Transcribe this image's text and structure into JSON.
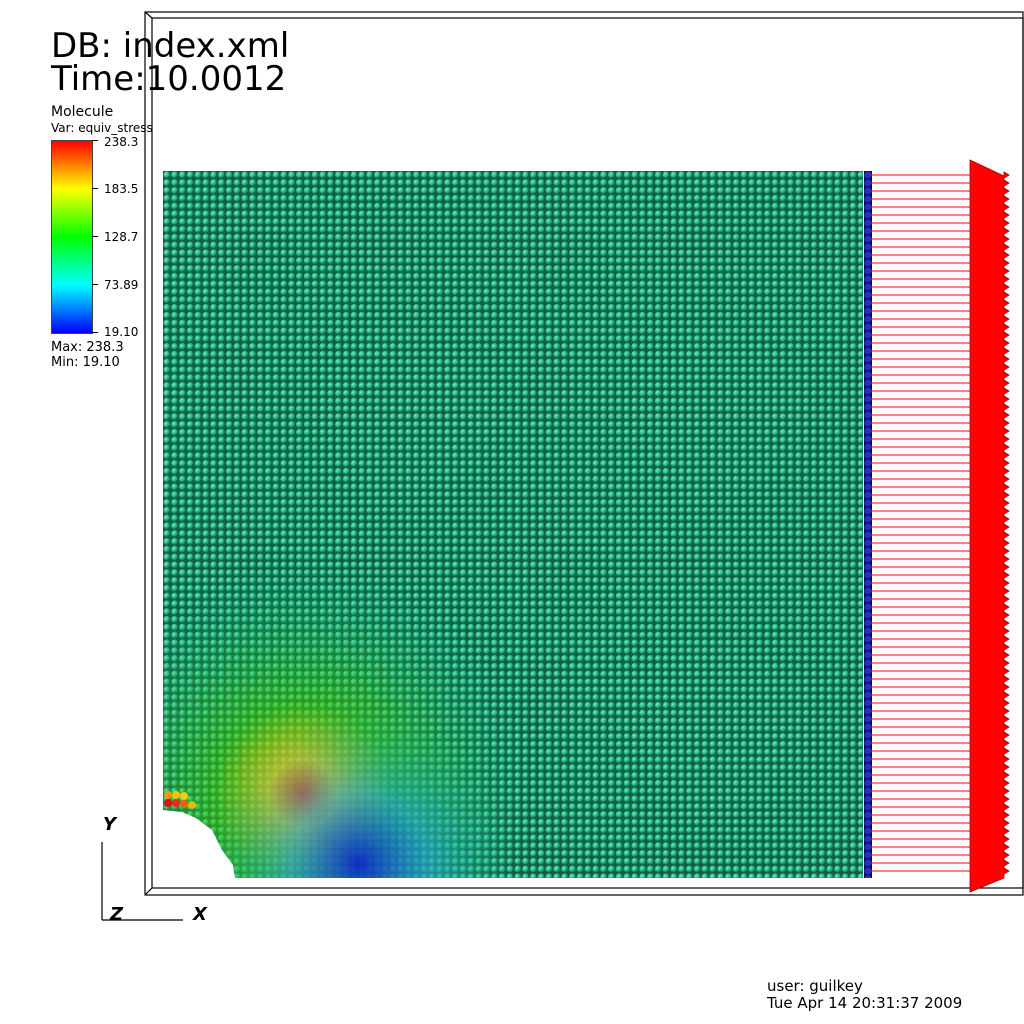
{
  "header": {
    "db": "DB: index.xml",
    "time": "Time:10.0012"
  },
  "legend": {
    "object": "Molecule",
    "variable": "Var: equiv_stress",
    "ticks": [
      "238.3",
      "183.5",
      "128.7",
      "73.89",
      "19.10"
    ],
    "max": "Max:  238.3",
    "min": "Min:  19.10",
    "gradient_colors": [
      "#ff0000",
      "#ffff00",
      "#00ff00",
      "#00ffff",
      "#0000ff"
    ]
  },
  "axes": {
    "y": "Y",
    "z": "Z",
    "x": "X"
  },
  "footer": {
    "user": "user: guilkey",
    "date": "Tue Apr 14 20:31:37 2009"
  },
  "scene": {
    "particle_color": "#1fb585",
    "boundary_column_color": "#1a1aa6",
    "arrow_color": "#ff0000",
    "icons": [
      "molecule-grid",
      "force-arrows",
      "axis-triad"
    ]
  }
}
